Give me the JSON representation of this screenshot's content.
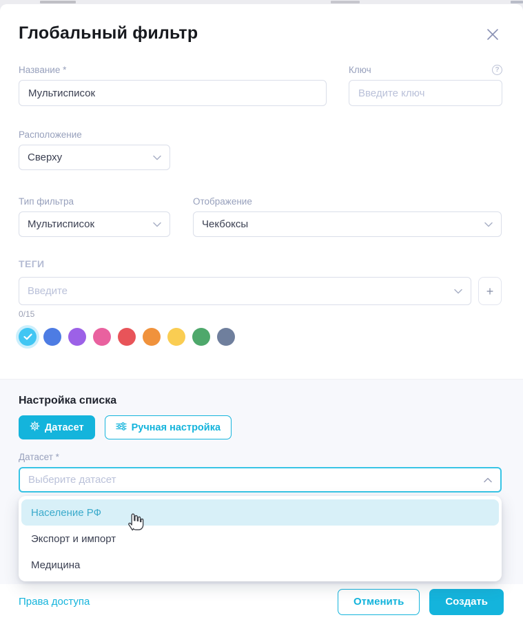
{
  "modal": {
    "title": "Глобальный фильтр"
  },
  "fields": {
    "name": {
      "label": "Название *",
      "value": "Мультисписок"
    },
    "key": {
      "label": "Ключ",
      "placeholder": "Введите ключ"
    },
    "position": {
      "label": "Расположение",
      "value": "Сверху"
    },
    "filter_type": {
      "label": "Тип фильтра",
      "value": "Мультисписок"
    },
    "display": {
      "label": "Отображение",
      "value": "Чекбоксы"
    }
  },
  "tags": {
    "label": "ТЕГИ",
    "placeholder": "Введите",
    "add_label": "+",
    "counter": "0/15"
  },
  "colors": {
    "selected_index": 0,
    "swatches": [
      "#41C6F3",
      "#4D7CE3",
      "#9C61E7",
      "#E9619F",
      "#E85459",
      "#F0923C",
      "#FACD52",
      "#4EA86B",
      "#6F7F9D"
    ]
  },
  "list_section": {
    "title": "Настройка списка",
    "dataset_tab": "Датасет",
    "manual_tab": "Ручная настройка",
    "dataset_field": {
      "label": "Датасет *",
      "placeholder": "Выберите датасет"
    },
    "highlighted_index": 0,
    "options": [
      "Население РФ",
      "Экспорт и импорт",
      "Медицина"
    ]
  },
  "footer": {
    "access_link": "Права доступа",
    "cancel_label": "Отменить",
    "create_label": "Создать"
  },
  "accent_color": "#14B4DC"
}
